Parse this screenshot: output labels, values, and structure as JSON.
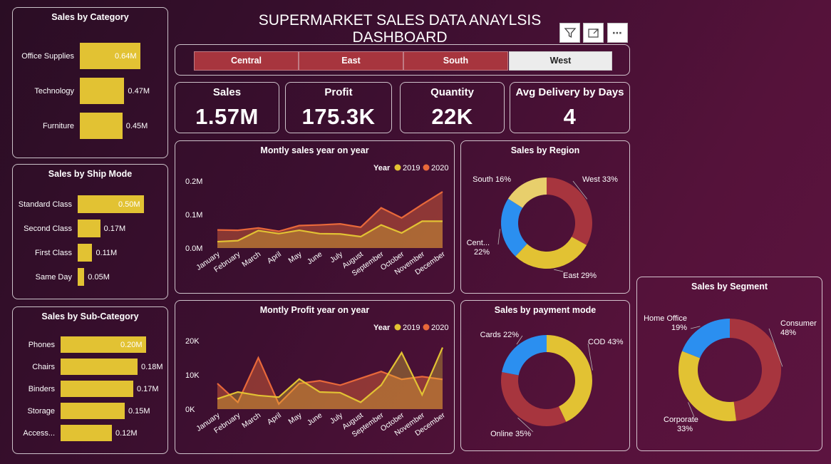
{
  "dashboard": {
    "title": "SUPERMARKET SALES DATA ANAYLSIS DASHBOARD"
  },
  "toolbar": {
    "filter_icon": "filter-icon",
    "focus_icon": "focus-mode-icon",
    "more_icon": "more-options-icon"
  },
  "slicer": {
    "options": [
      {
        "label": "Central",
        "selected": false
      },
      {
        "label": "East",
        "selected": false
      },
      {
        "label": "South",
        "selected": false
      },
      {
        "label": "West",
        "selected": true
      }
    ]
  },
  "kpis": [
    {
      "label": "Sales",
      "value": "1.57M"
    },
    {
      "label": "Profit",
      "value": "175.3K"
    },
    {
      "label": "Quantity",
      "value": "22K"
    },
    {
      "label": "Avg Delivery by Days",
      "value": "4"
    }
  ],
  "colors": {
    "bar": "#e2c233",
    "y2019": "#e2c233",
    "y2020": "#e8683a",
    "west": "#a7353e",
    "east": "#e2c233",
    "central": "#2b8ff0",
    "south": "#e8cf6c"
  },
  "chart_data": [
    {
      "id": "category",
      "type": "bar",
      "title": "Sales by Category",
      "categories": [
        "Office Supplies",
        "Technology",
        "Furniture"
      ],
      "values": [
        0.64,
        0.47,
        0.45
      ],
      "labels": [
        "0.64M",
        "0.47M",
        "0.45M"
      ]
    },
    {
      "id": "shipmode",
      "type": "bar",
      "title": "Sales by Ship Mode",
      "categories": [
        "Standard Class",
        "Second Class",
        "First Class",
        "Same Day"
      ],
      "values": [
        0.5,
        0.17,
        0.11,
        0.05
      ],
      "labels": [
        "0.50M",
        "0.17M",
        "0.11M",
        "0.05M"
      ]
    },
    {
      "id": "subcategory",
      "type": "bar",
      "title": "Sales by Sub-Category",
      "categories": [
        "Phones",
        "Chairs",
        "Binders",
        "Storage",
        "Access..."
      ],
      "values": [
        0.2,
        0.18,
        0.17,
        0.15,
        0.12
      ],
      "labels": [
        "0.20M",
        "0.18M",
        "0.17M",
        "0.15M",
        "0.12M"
      ]
    },
    {
      "id": "monthly_sales",
      "type": "area",
      "title": "Montly sales year on year",
      "legend_title": "Year",
      "categories": [
        "January",
        "February",
        "March",
        "April",
        "May",
        "June",
        "July",
        "August",
        "September",
        "October",
        "November",
        "December"
      ],
      "series": [
        {
          "name": "2019",
          "values": [
            0.019,
            0.022,
            0.052,
            0.043,
            0.053,
            0.043,
            0.042,
            0.034,
            0.069,
            0.045,
            0.08,
            0.08
          ]
        },
        {
          "name": "2020",
          "values": [
            0.054,
            0.053,
            0.06,
            0.05,
            0.067,
            0.069,
            0.072,
            0.062,
            0.12,
            0.09,
            0.13,
            0.168
          ]
        }
      ],
      "yticks": [
        "0.0M",
        "0.1M",
        "0.2M"
      ],
      "ylim": [
        0,
        0.2
      ]
    },
    {
      "id": "monthly_profit",
      "type": "area",
      "title": "Montly Profit year on year",
      "legend_title": "Year",
      "categories": [
        "January",
        "February",
        "March",
        "April",
        "May",
        "June",
        "July",
        "August",
        "September",
        "October",
        "November",
        "December"
      ],
      "series": [
        {
          "name": "2019",
          "values": [
            3000,
            5000,
            4000,
            3500,
            8800,
            5000,
            4800,
            2000,
            7000,
            16500,
            4200,
            18000
          ]
        },
        {
          "name": "2020",
          "values": [
            7500,
            2000,
            15000,
            1500,
            7500,
            8300,
            7000,
            9000,
            11000,
            8700,
            9500,
            8700
          ]
        }
      ],
      "yticks": [
        "0K",
        "10K",
        "20K"
      ],
      "ylim": [
        0,
        20000
      ]
    },
    {
      "id": "region",
      "type": "pie",
      "title": "Sales by Region",
      "slices": [
        {
          "name": "West",
          "value": 33,
          "label": "West 33%",
          "color": "#a7353e"
        },
        {
          "name": "East",
          "value": 29,
          "label": "East 29%",
          "color": "#e2c233"
        },
        {
          "name": "Central",
          "value": 22,
          "label": "Cent...",
          "label2": "22%",
          "color": "#2b8ff0"
        },
        {
          "name": "South",
          "value": 16,
          "label": "South 16%",
          "color": "#e8cf6c"
        }
      ]
    },
    {
      "id": "payment",
      "type": "pie",
      "title": "Sales by payment mode",
      "slices": [
        {
          "name": "COD",
          "value": 43,
          "label": "COD 43%",
          "color": "#e2c233"
        },
        {
          "name": "Online",
          "value": 35,
          "label": "Online 35%",
          "color": "#a7353e"
        },
        {
          "name": "Cards",
          "value": 22,
          "label": "Cards 22%",
          "color": "#2b8ff0"
        }
      ]
    },
    {
      "id": "segment",
      "type": "pie",
      "title": "Sales by Segment",
      "slices": [
        {
          "name": "Consumer",
          "value": 48,
          "label": "Consumer",
          "label2": "48%",
          "color": "#a7353e"
        },
        {
          "name": "Corporate",
          "value": 33,
          "label": "Corporate",
          "label2": "33%",
          "color": "#e2c233"
        },
        {
          "name": "Home Office",
          "value": 19,
          "label": "Home Office",
          "label2": "19%",
          "color": "#2b8ff0"
        }
      ]
    }
  ]
}
